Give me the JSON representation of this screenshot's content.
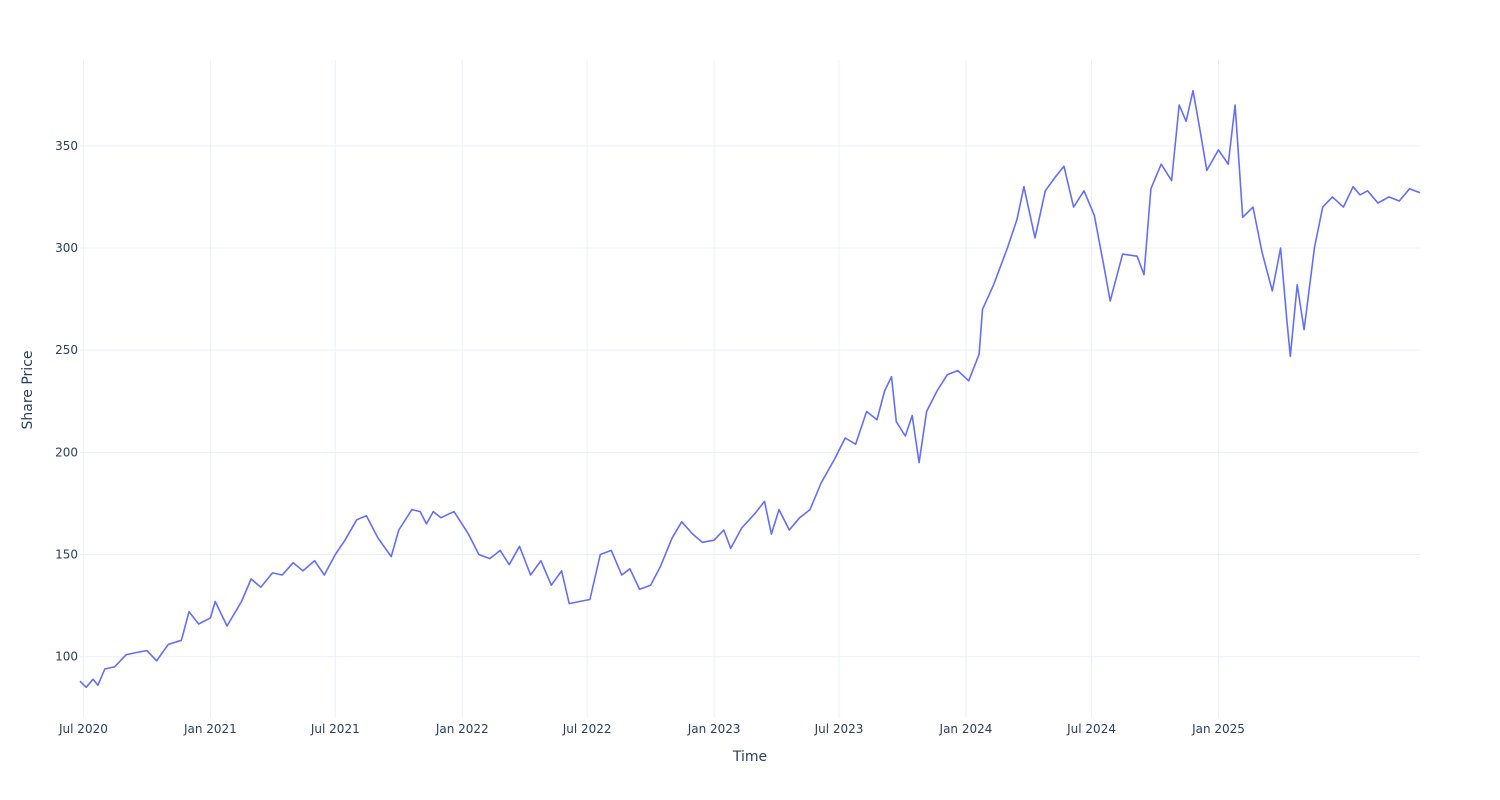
{
  "chart_data": {
    "type": "line",
    "title": "",
    "xlabel": "Time",
    "ylabel": "Share Price",
    "x_ticks": [
      {
        "date": "2020-07-01",
        "label": "Jul 2020"
      },
      {
        "date": "2021-01-01",
        "label": "Jan 2021"
      },
      {
        "date": "2021-07-01",
        "label": "Jul 2021"
      },
      {
        "date": "2022-01-01",
        "label": "Jan 2022"
      },
      {
        "date": "2022-07-01",
        "label": "Jul 2022"
      },
      {
        "date": "2023-01-01",
        "label": "Jan 2023"
      },
      {
        "date": "2023-07-01",
        "label": "Jul 2023"
      },
      {
        "date": "2024-01-01",
        "label": "Jan 2024"
      },
      {
        "date": "2024-07-01",
        "label": "Jul 2024"
      },
      {
        "date": "2025-01-01",
        "label": "Jan 2025"
      }
    ],
    "y_ticks": [
      100,
      150,
      200,
      250,
      300,
      350
    ],
    "xlim": [
      "2020-06-26",
      "2025-10-20"
    ],
    "ylim": [
      70,
      392
    ],
    "grid": true,
    "legend": "none",
    "line_color": "#636efa",
    "series": [
      {
        "points": [
          [
            "2020-06-26",
            88
          ],
          [
            "2020-07-05",
            85
          ],
          [
            "2020-07-15",
            89
          ],
          [
            "2020-07-22",
            86
          ],
          [
            "2020-08-01",
            94
          ],
          [
            "2020-08-15",
            95
          ],
          [
            "2020-09-01",
            101
          ],
          [
            "2020-09-15",
            102
          ],
          [
            "2020-10-01",
            103
          ],
          [
            "2020-10-15",
            98
          ],
          [
            "2020-11-01",
            106
          ],
          [
            "2020-11-20",
            108
          ],
          [
            "2020-12-01",
            122
          ],
          [
            "2020-12-15",
            116
          ],
          [
            "2021-01-01",
            119
          ],
          [
            "2021-01-08",
            127
          ],
          [
            "2021-01-25",
            115
          ],
          [
            "2021-02-15",
            127
          ],
          [
            "2021-03-01",
            138
          ],
          [
            "2021-03-15",
            134
          ],
          [
            "2021-04-01",
            141
          ],
          [
            "2021-04-15",
            140
          ],
          [
            "2021-05-01",
            146
          ],
          [
            "2021-05-15",
            142
          ],
          [
            "2021-06-01",
            147
          ],
          [
            "2021-06-15",
            140
          ],
          [
            "2021-07-01",
            150
          ],
          [
            "2021-07-15",
            157
          ],
          [
            "2021-08-01",
            167
          ],
          [
            "2021-08-15",
            169
          ],
          [
            "2021-09-01",
            158
          ],
          [
            "2021-09-20",
            149
          ],
          [
            "2021-10-01",
            162
          ],
          [
            "2021-10-20",
            172
          ],
          [
            "2021-11-01",
            171
          ],
          [
            "2021-11-10",
            165
          ],
          [
            "2021-11-20",
            171
          ],
          [
            "2021-12-01",
            168
          ],
          [
            "2021-12-20",
            171
          ],
          [
            "2022-01-10",
            160
          ],
          [
            "2022-01-25",
            150
          ],
          [
            "2022-02-10",
            148
          ],
          [
            "2022-02-25",
            152
          ],
          [
            "2022-03-10",
            145
          ],
          [
            "2022-03-25",
            154
          ],
          [
            "2022-04-10",
            140
          ],
          [
            "2022-04-25",
            147
          ],
          [
            "2022-05-10",
            135
          ],
          [
            "2022-05-25",
            142
          ],
          [
            "2022-06-05",
            126
          ],
          [
            "2022-06-20",
            127
          ],
          [
            "2022-07-05",
            128
          ],
          [
            "2022-07-20",
            150
          ],
          [
            "2022-08-05",
            152
          ],
          [
            "2022-08-20",
            140
          ],
          [
            "2022-09-01",
            143
          ],
          [
            "2022-09-15",
            133
          ],
          [
            "2022-10-01",
            135
          ],
          [
            "2022-10-15",
            144
          ],
          [
            "2022-11-01",
            158
          ],
          [
            "2022-11-15",
            166
          ],
          [
            "2022-12-01",
            160
          ],
          [
            "2022-12-15",
            156
          ],
          [
            "2023-01-01",
            157
          ],
          [
            "2023-01-15",
            162
          ],
          [
            "2023-01-25",
            153
          ],
          [
            "2023-02-10",
            163
          ],
          [
            "2023-03-01",
            170
          ],
          [
            "2023-03-15",
            176
          ],
          [
            "2023-03-25",
            160
          ],
          [
            "2023-04-05",
            172
          ],
          [
            "2023-04-20",
            162
          ],
          [
            "2023-05-05",
            168
          ],
          [
            "2023-05-20",
            172
          ],
          [
            "2023-06-05",
            185
          ],
          [
            "2023-06-25",
            197
          ],
          [
            "2023-07-10",
            207
          ],
          [
            "2023-07-25",
            204
          ],
          [
            "2023-08-10",
            220
          ],
          [
            "2023-08-25",
            216
          ],
          [
            "2023-09-05",
            230
          ],
          [
            "2023-09-15",
            237
          ],
          [
            "2023-09-22",
            215
          ],
          [
            "2023-10-05",
            208
          ],
          [
            "2023-10-15",
            218
          ],
          [
            "2023-10-25",
            195
          ],
          [
            "2023-11-05",
            220
          ],
          [
            "2023-11-20",
            230
          ],
          [
            "2023-12-05",
            238
          ],
          [
            "2023-12-20",
            240
          ],
          [
            "2024-01-05",
            235
          ],
          [
            "2024-01-20",
            248
          ],
          [
            "2024-01-25",
            270
          ],
          [
            "2024-02-10",
            282
          ],
          [
            "2024-03-01",
            300
          ],
          [
            "2024-03-15",
            314
          ],
          [
            "2024-03-25",
            330
          ],
          [
            "2024-04-10",
            305
          ],
          [
            "2024-04-25",
            328
          ],
          [
            "2024-05-10",
            335
          ],
          [
            "2024-05-22",
            340
          ],
          [
            "2024-06-05",
            320
          ],
          [
            "2024-06-20",
            328
          ],
          [
            "2024-07-05",
            316
          ],
          [
            "2024-07-20",
            289
          ],
          [
            "2024-07-28",
            274
          ],
          [
            "2024-08-15",
            297
          ],
          [
            "2024-09-05",
            296
          ],
          [
            "2024-09-15",
            287
          ],
          [
            "2024-09-25",
            329
          ],
          [
            "2024-10-10",
            341
          ],
          [
            "2024-10-25",
            333
          ],
          [
            "2024-11-05",
            370
          ],
          [
            "2024-11-15",
            362
          ],
          [
            "2024-11-25",
            377
          ],
          [
            "2024-12-05",
            358
          ],
          [
            "2024-12-15",
            338
          ],
          [
            "2025-01-01",
            348
          ],
          [
            "2025-01-15",
            341
          ],
          [
            "2025-01-25",
            370
          ],
          [
            "2025-02-05",
            315
          ],
          [
            "2025-02-20",
            320
          ],
          [
            "2025-03-05",
            298
          ],
          [
            "2025-03-20",
            279
          ],
          [
            "2025-04-01",
            300
          ],
          [
            "2025-04-10",
            265
          ],
          [
            "2025-04-15",
            247
          ],
          [
            "2025-04-25",
            282
          ],
          [
            "2025-05-05",
            260
          ],
          [
            "2025-05-20",
            300
          ],
          [
            "2025-06-01",
            320
          ],
          [
            "2025-06-15",
            325
          ],
          [
            "2025-07-01",
            320
          ],
          [
            "2025-07-15",
            330
          ],
          [
            "2025-07-25",
            326
          ],
          [
            "2025-08-05",
            328
          ],
          [
            "2025-08-20",
            322
          ],
          [
            "2025-09-05",
            325
          ],
          [
            "2025-09-20",
            323
          ],
          [
            "2025-10-05",
            329
          ],
          [
            "2025-10-20",
            327
          ]
        ]
      }
    ]
  }
}
